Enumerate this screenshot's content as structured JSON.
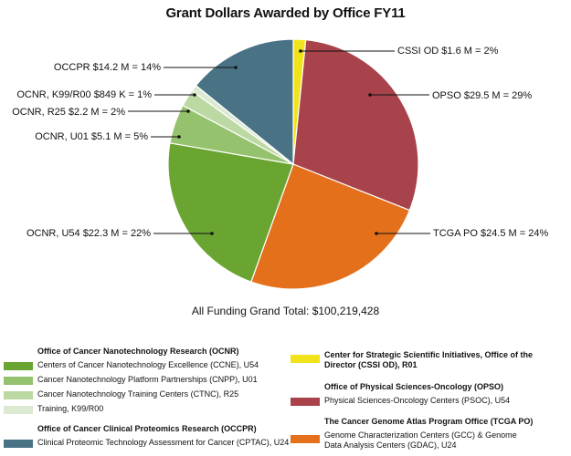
{
  "chart_data": {
    "type": "pie",
    "title": "Grant Dollars Awarded by Office FY11",
    "slices": [
      {
        "key": "cssi",
        "label": "CSSI OD $1.6 M = 2%",
        "value": 1.6,
        "percent": 2,
        "color": "#f1e31b"
      },
      {
        "key": "opso",
        "label": "OPSO $29.5 M = 29%",
        "value": 29.5,
        "percent": 29,
        "color": "#a8434b"
      },
      {
        "key": "tcga",
        "label": "TCGA PO $24.5 M = 24%",
        "value": 24.5,
        "percent": 24,
        "color": "#e4701c"
      },
      {
        "key": "ocnr-u54",
        "label": "OCNR, U54 $22.3 M = 22%",
        "value": 22.3,
        "percent": 22,
        "color": "#6aa532"
      },
      {
        "key": "ocnr-u01",
        "label": "OCNR, U01 $5.1 M = 5%",
        "value": 5.1,
        "percent": 5,
        "color": "#95c26c"
      },
      {
        "key": "ocnr-r25",
        "label": "OCNR, R25 $2.2 M = 2%",
        "value": 2.2,
        "percent": 2,
        "color": "#bcd9a3"
      },
      {
        "key": "ocnr-k99",
        "label": "OCNR, K99/R00 $849 K = 1%",
        "value": 0.849,
        "percent": 1,
        "color": "#dbead0"
      },
      {
        "key": "occpr",
        "label": "OCCPR $14.2 M = 14%",
        "value": 14.2,
        "percent": 14,
        "color": "#4a7285"
      }
    ],
    "grand_total": "All Funding Grand Total: $100,219,428"
  },
  "legend": {
    "left": [
      {
        "title": "Office of Cancer Nanotechnology Research (OCNR)",
        "items": [
          {
            "label": "Centers of Cancer Nanotechnology Excellence (CCNE), U54",
            "color": "#6aa532"
          },
          {
            "label": "Cancer Nanotechnology Platform Partnerships (CNPP), U01",
            "color": "#95c26c"
          },
          {
            "label": "Cancer Nanotechnology Training Centers (CTNC), R25",
            "color": "#bcd9a3"
          },
          {
            "label": "Training, K99/R00",
            "color": "#dbead0"
          }
        ]
      },
      {
        "title": "Office of Cancer Clinical Proteomics Research (OCCPR)",
        "items": [
          {
            "label": "Clinical Proteomic Technology Assessment for Cancer (CPTAC), U24",
            "color": "#4a7285"
          }
        ]
      }
    ],
    "right": [
      {
        "title": "",
        "items": [
          {
            "label": "Center for Strategic Scientific Initiatives, Office of the Director (CSSI OD), R01",
            "color": "#f1e31b",
            "bold": true
          }
        ]
      },
      {
        "title": "Office of Physical Sciences-Oncology (OPSO)",
        "items": [
          {
            "label": "Physical Sciences-Oncology Centers (PSOC), U54",
            "color": "#a8434b"
          }
        ]
      },
      {
        "title": "The Cancer Genome Atlas Program Office (TCGA PO)",
        "items": [
          {
            "label": "Genome Characterization Centers (GCC) & Genome Data Analysis Centers (GDAC), U24",
            "color": "#e4701c"
          }
        ]
      }
    ]
  }
}
